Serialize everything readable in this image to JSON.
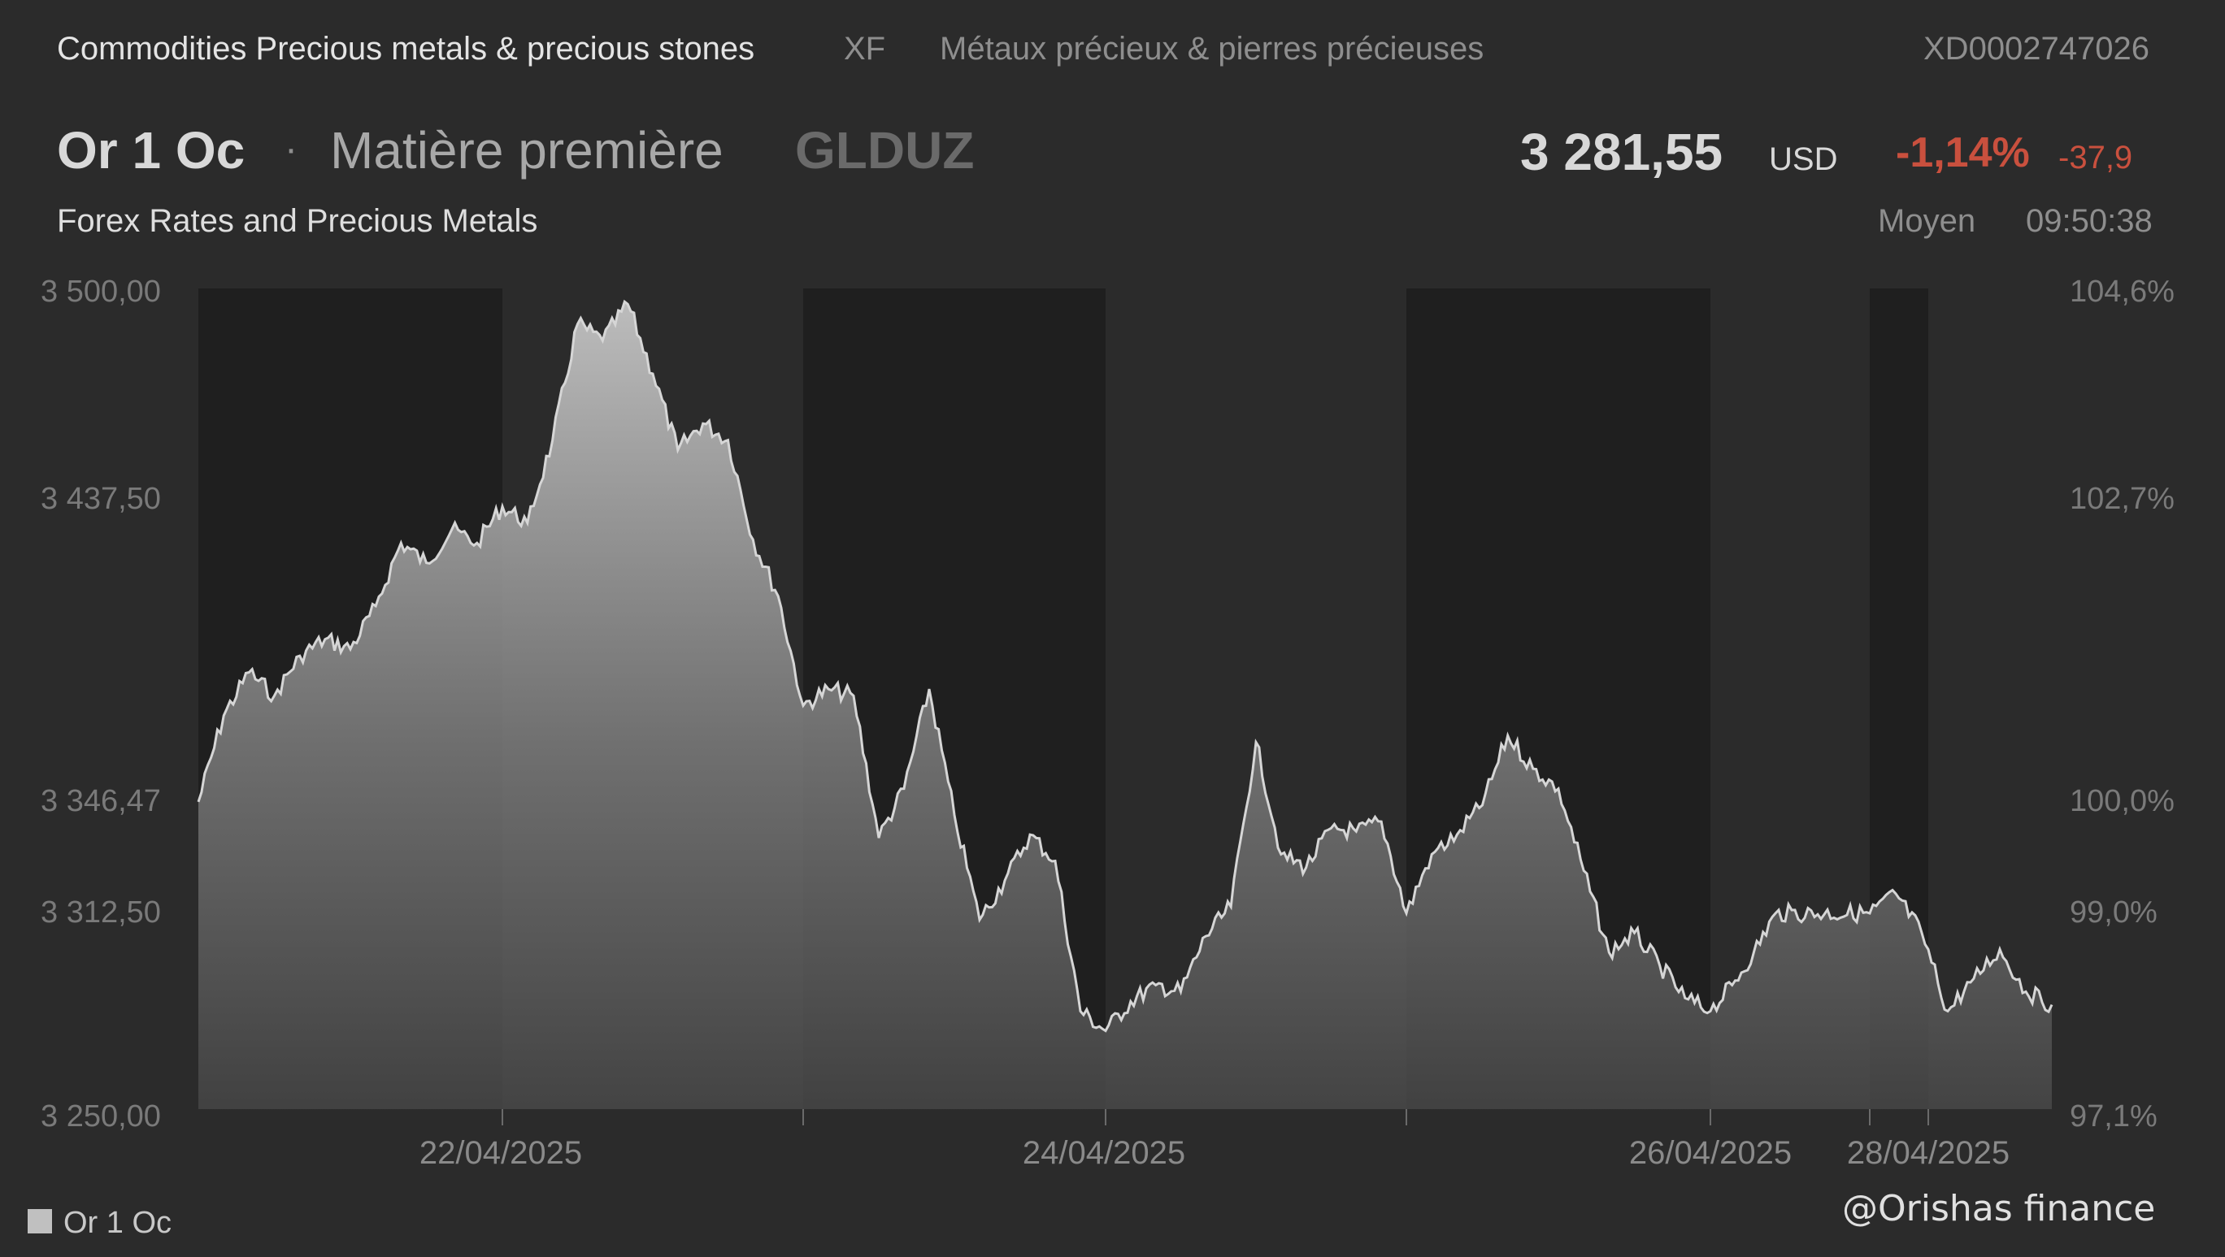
{
  "header": {
    "category_en": "Commodities Precious metals & precious stones",
    "exchange_code": "XF",
    "category_fr": "Métaux précieux & pierres précieuses",
    "isin": "XD0002747026",
    "instrument_name": "Or 1 Oc",
    "separator": "·",
    "instrument_type": "Matière première",
    "ticker": "GLDUZ",
    "price": "3 281,55",
    "currency": "USD",
    "change_pct": "-1,14%",
    "change_abs": "-37,9",
    "source": "Forex Rates and Precious Metals",
    "quote_type": "Moyen",
    "quote_time": "09:50:38"
  },
  "colors": {
    "background": "#2b2b2b",
    "session_band": "#1f1f1f",
    "line": "#d6d6d6",
    "negative": "#c9503e"
  },
  "chart_data": {
    "type": "area",
    "series": [
      {
        "name": "Or 1 Oc",
        "points": [
          [
            "21/04/2025 00:00",
            3346
          ],
          [
            "21/04/2025 02:00",
            3372
          ],
          [
            "21/04/2025 04:00",
            3385
          ],
          [
            "21/04/2025 06:00",
            3378
          ],
          [
            "21/04/2025 08:00",
            3390
          ],
          [
            "21/04/2025 10:00",
            3395
          ],
          [
            "21/04/2025 12:00",
            3392
          ],
          [
            "21/04/2025 14:00",
            3405
          ],
          [
            "21/04/2025 16:00",
            3424
          ],
          [
            "21/04/2025 18:00",
            3418
          ],
          [
            "21/04/2025 20:00",
            3428
          ],
          [
            "21/04/2025 22:00",
            3424
          ],
          [
            "22/04/2025 00:00",
            3435
          ],
          [
            "22/04/2025 02:00",
            3430
          ],
          [
            "22/04/2025 04:00",
            3455
          ],
          [
            "22/04/2025 06:00",
            3490
          ],
          [
            "22/04/2025 08:00",
            3485
          ],
          [
            "22/04/2025 10:00",
            3496
          ],
          [
            "22/04/2025 12:00",
            3475
          ],
          [
            "22/04/2025 14:00",
            3452
          ],
          [
            "22/04/2025 16:00",
            3460
          ],
          [
            "22/04/2025 18:00",
            3455
          ],
          [
            "22/04/2025 20:00",
            3425
          ],
          [
            "22/04/2025 22:00",
            3408
          ],
          [
            "23/04/2025 00:00",
            3375
          ],
          [
            "23/04/2025 02:00",
            3380
          ],
          [
            "23/04/2025 04:00",
            3378
          ],
          [
            "23/04/2025 06:00",
            3335
          ],
          [
            "23/04/2025 08:00",
            3350
          ],
          [
            "23/04/2025 10:00",
            3380
          ],
          [
            "23/04/2025 12:00",
            3342
          ],
          [
            "23/04/2025 14:00",
            3310
          ],
          [
            "23/04/2025 16:00",
            3322
          ],
          [
            "23/04/2025 18:00",
            3336
          ],
          [
            "23/04/2025 20:00",
            3328
          ],
          [
            "23/04/2025 22:00",
            3282
          ],
          [
            "24/04/2025 00:00",
            3276
          ],
          [
            "24/04/2025 02:00",
            3285
          ],
          [
            "24/04/2025 04:00",
            3290
          ],
          [
            "24/04/2025 06:00",
            3288
          ],
          [
            "24/04/2025 08:00",
            3305
          ],
          [
            "24/04/2025 10:00",
            3314
          ],
          [
            "24/04/2025 12:00",
            3364
          ],
          [
            "24/04/2025 14:00",
            3330
          ],
          [
            "24/04/2025 16:00",
            3326
          ],
          [
            "24/04/2025 18:00",
            3338
          ],
          [
            "24/04/2025 20:00",
            3337
          ],
          [
            "24/04/2025 22:00",
            3340
          ],
          [
            "25/04/2025 00:00",
            3312
          ],
          [
            "25/04/2025 02:00",
            3330
          ],
          [
            "25/04/2025 04:00",
            3336
          ],
          [
            "25/04/2025 06:00",
            3345
          ],
          [
            "25/04/2025 08:00",
            3366
          ],
          [
            "25/04/2025 10:00",
            3356
          ],
          [
            "25/04/2025 12:00",
            3350
          ],
          [
            "25/04/2025 14:00",
            3325
          ],
          [
            "25/04/2025 16:00",
            3300
          ],
          [
            "25/04/2025 18:00",
            3306
          ],
          [
            "25/04/2025 20:00",
            3296
          ],
          [
            "25/04/2025 22:00",
            3286
          ],
          [
            "26/04/2025 00:00",
            3282
          ],
          [
            "26/04/2025 02:00",
            3290
          ],
          [
            "26/04/2025 04:00",
            3300
          ],
          [
            "26/04/2025 06:00",
            3312
          ],
          [
            "28/04/2025 00:00",
            3312
          ],
          [
            "28/04/2025 02:00",
            3318
          ],
          [
            "28/04/2025 04:00",
            3306
          ],
          [
            "28/04/2025 06:00",
            3282
          ],
          [
            "28/04/2025 08:00",
            3292
          ],
          [
            "28/04/2025 10:00",
            3301
          ],
          [
            "28/04/2025 12:00",
            3288
          ],
          [
            "28/04/2025 14:00",
            3284
          ]
        ]
      }
    ],
    "x_tick_labels": [
      "22/04/2025",
      "24/04/2025",
      "26/04/2025",
      "28/04/2025"
    ],
    "y_ticks": [
      3250,
      3312.5,
      3346.47,
      3437.5,
      3500
    ],
    "y_tick_labels": [
      "3 250,00",
      "3 312,50",
      "3 346,47",
      "3 437,50",
      "3 500,00"
    ],
    "y2_tick_labels": [
      "97,1%",
      "99,0%",
      "100,0%",
      "102,7%",
      "104,6%"
    ],
    "ylim": [
      3250,
      3500
    ],
    "reference_value": 3346.47,
    "legend": {
      "position": "bottom-left",
      "entries": [
        "Or 1 Oc"
      ]
    },
    "grid": false
  },
  "watermark": "@Orishas finance"
}
